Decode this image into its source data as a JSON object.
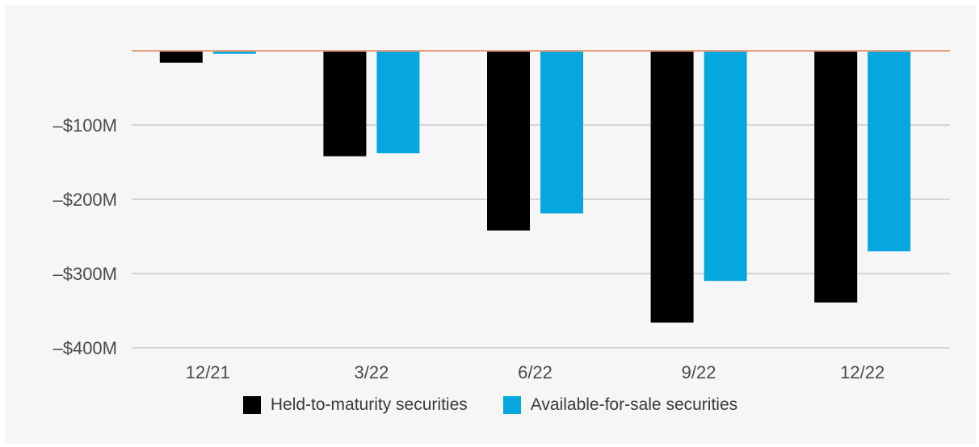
{
  "chart_data": {
    "type": "bar",
    "title": "",
    "xlabel": "",
    "ylabel": "",
    "categories": [
      "12/21",
      "3/22",
      "6/22",
      "9/22",
      "12/22"
    ],
    "series": [
      {
        "name": "Held-to-maturity securities",
        "color": "#000000",
        "values": [
          -16,
          -142,
          -242,
          -366,
          -339
        ]
      },
      {
        "name": "Available-for-sale securities",
        "color": "#06a6df",
        "values": [
          -4,
          -138,
          -219,
          -310,
          -270
        ]
      }
    ],
    "ylim": [
      -400,
      0
    ],
    "yticks": [
      -100,
      -200,
      -300,
      -400
    ],
    "ytick_labels": [
      "–$100M",
      "–$200M",
      "–$300M",
      "–$400M"
    ],
    "zero_line_color": "#e8a07a",
    "grid": true,
    "legend_position": "bottom-center"
  }
}
